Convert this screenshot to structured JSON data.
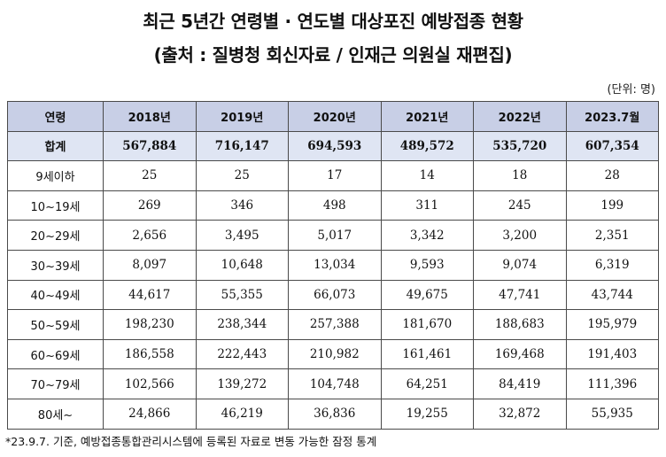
{
  "title_line1": "최근 5년간 연령별 · 연도별 대상포진 예방접종 현황",
  "title_line2": "(출처 : 질병청 회신자료 / 인재근 의원실 재편집)",
  "unit": "(단위: 명)",
  "table": {
    "headers": [
      "연령",
      "2018년",
      "2019년",
      "2020년",
      "2021년",
      "2022년",
      "2023.7월"
    ],
    "total": [
      "합계",
      "567,884",
      "716,147",
      "694,593",
      "489,572",
      "535,720",
      "607,354"
    ],
    "rows": [
      [
        "9세이하",
        "25",
        "25",
        "17",
        "14",
        "18",
        "28"
      ],
      [
        "10~19세",
        "269",
        "346",
        "498",
        "311",
        "245",
        "199"
      ],
      [
        "20~29세",
        "2,656",
        "3,495",
        "5,017",
        "3,342",
        "3,200",
        "2,351"
      ],
      [
        "30~39세",
        "8,097",
        "10,648",
        "13,034",
        "9,593",
        "9,074",
        "6,319"
      ],
      [
        "40~49세",
        "44,617",
        "55,355",
        "66,073",
        "49,675",
        "47,741",
        "43,744"
      ],
      [
        "50~59세",
        "198,230",
        "238,344",
        "257,388",
        "181,670",
        "188,683",
        "195,979"
      ],
      [
        "60~69세",
        "186,558",
        "222,443",
        "210,982",
        "161,461",
        "169,468",
        "191,403"
      ],
      [
        "70~79세",
        "102,566",
        "139,272",
        "104,748",
        "64,251",
        "84,419",
        "111,396"
      ],
      [
        "80세~",
        "24,866",
        "46,219",
        "36,836",
        "19,255",
        "32,872",
        "55,935"
      ]
    ]
  },
  "footnote": "*23.9.7. 기준, 예방접종통합관리시스템에 등록된 자료로 변동 가능한 잠정 통계"
}
